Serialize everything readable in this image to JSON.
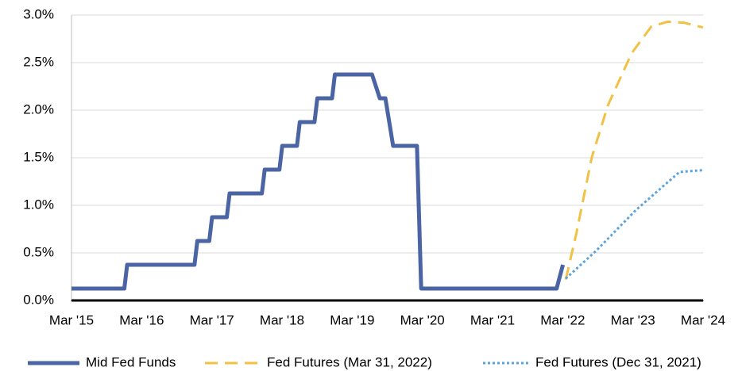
{
  "chart_data": {
    "type": "line",
    "ylim": [
      0,
      3
    ],
    "yticks": [
      {
        "value": 0,
        "label": "0.0%"
      },
      {
        "value": 0.5,
        "label": "0.5%"
      },
      {
        "value": 1,
        "label": "1.0%"
      },
      {
        "value": 1.5,
        "label": "1.5%"
      },
      {
        "value": 2,
        "label": "2.0%"
      },
      {
        "value": 2.5,
        "label": "2.5%"
      },
      {
        "value": 3,
        "label": "3.0%"
      }
    ],
    "xlim": [
      2015.167,
      2024.167
    ],
    "xticks": [
      {
        "value": 2015.167,
        "label": "Mar '15"
      },
      {
        "value": 2016.167,
        "label": "Mar '16"
      },
      {
        "value": 2017.167,
        "label": "Mar '17"
      },
      {
        "value": 2018.167,
        "label": "Mar '18"
      },
      {
        "value": 2019.167,
        "label": "Mar '19"
      },
      {
        "value": 2020.167,
        "label": "Mar '20"
      },
      {
        "value": 2021.167,
        "label": "Mar '21"
      },
      {
        "value": 2022.167,
        "label": "Mar '22"
      },
      {
        "value": 2023.167,
        "label": "Mar '23"
      },
      {
        "value": 2024.167,
        "label": "Mar '24"
      }
    ],
    "grid": true,
    "legend": "bottom",
    "series": [
      {
        "name": "Mid Fed Funds",
        "color": "#4a64a4",
        "dash": "solid",
        "x": [
          2015.167,
          2015.92,
          2015.96,
          2016.92,
          2016.96,
          2017.13,
          2017.17,
          2017.38,
          2017.42,
          2017.88,
          2017.92,
          2018.13,
          2018.17,
          2018.38,
          2018.42,
          2018.63,
          2018.67,
          2018.88,
          2018.92,
          2019.45,
          2019.56,
          2019.64,
          2019.75,
          2020.09,
          2020.15,
          2022.08,
          2022.17
        ],
        "values": [
          0.125,
          0.125,
          0.375,
          0.375,
          0.625,
          0.625,
          0.875,
          0.875,
          1.125,
          1.125,
          1.375,
          1.375,
          1.625,
          1.625,
          1.875,
          1.875,
          2.125,
          2.125,
          2.375,
          2.375,
          2.125,
          2.125,
          1.625,
          1.625,
          0.125,
          0.125,
          0.375
        ]
      },
      {
        "name": "Fed Futures (Mar 31, 2022)",
        "color": "#f2c143",
        "dash": "dashed",
        "x": [
          2022.21,
          2022.36,
          2022.58,
          2022.81,
          2023.15,
          2023.43,
          2023.66,
          2023.89,
          2024.167
        ],
        "values": [
          0.22,
          0.7,
          1.5,
          2.05,
          2.6,
          2.88,
          2.93,
          2.92,
          2.87
        ]
      },
      {
        "name": "Fed Futures (Dec 31, 2021)",
        "color": "#5ba3dc",
        "dash": "dotted",
        "x": [
          2022.21,
          2022.64,
          2023.21,
          2023.83,
          2024.167
        ],
        "values": [
          0.23,
          0.52,
          0.95,
          1.35,
          1.37
        ]
      }
    ]
  }
}
